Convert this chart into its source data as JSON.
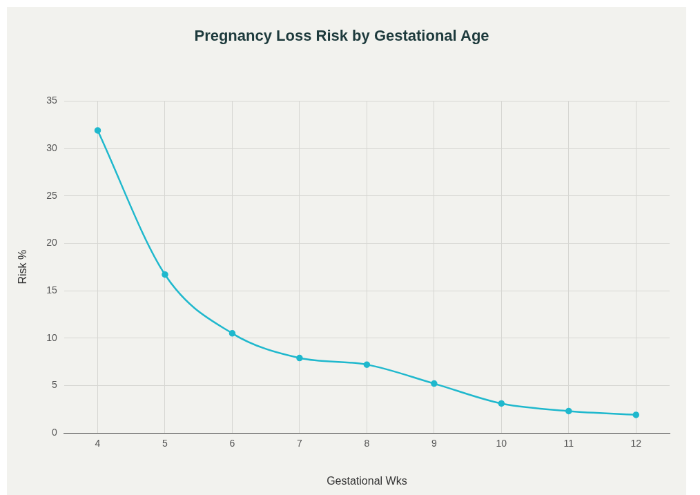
{
  "chart_data": {
    "type": "line",
    "title": "Pregnancy Loss Risk by Gestational Age",
    "xlabel": "Gestational Wks",
    "ylabel": "Risk %",
    "x": [
      4,
      5,
      6,
      7,
      8,
      9,
      10,
      11,
      12
    ],
    "series": [
      {
        "color": "#1fb8cd",
        "values": [
          31.9,
          16.7,
          10.5,
          7.9,
          7.2,
          5.2,
          3.1,
          2.3,
          1.9
        ]
      }
    ],
    "xlim": [
      3.5,
      12.5
    ],
    "xticks": [
      4,
      5,
      6,
      7,
      8,
      9,
      10,
      11,
      12
    ],
    "ylim": [
      0,
      35
    ],
    "yticks": [
      0,
      5,
      10,
      15,
      20,
      25,
      30,
      35
    ],
    "grid": true,
    "legend": false,
    "marker": "circle",
    "line_style": "solid"
  }
}
